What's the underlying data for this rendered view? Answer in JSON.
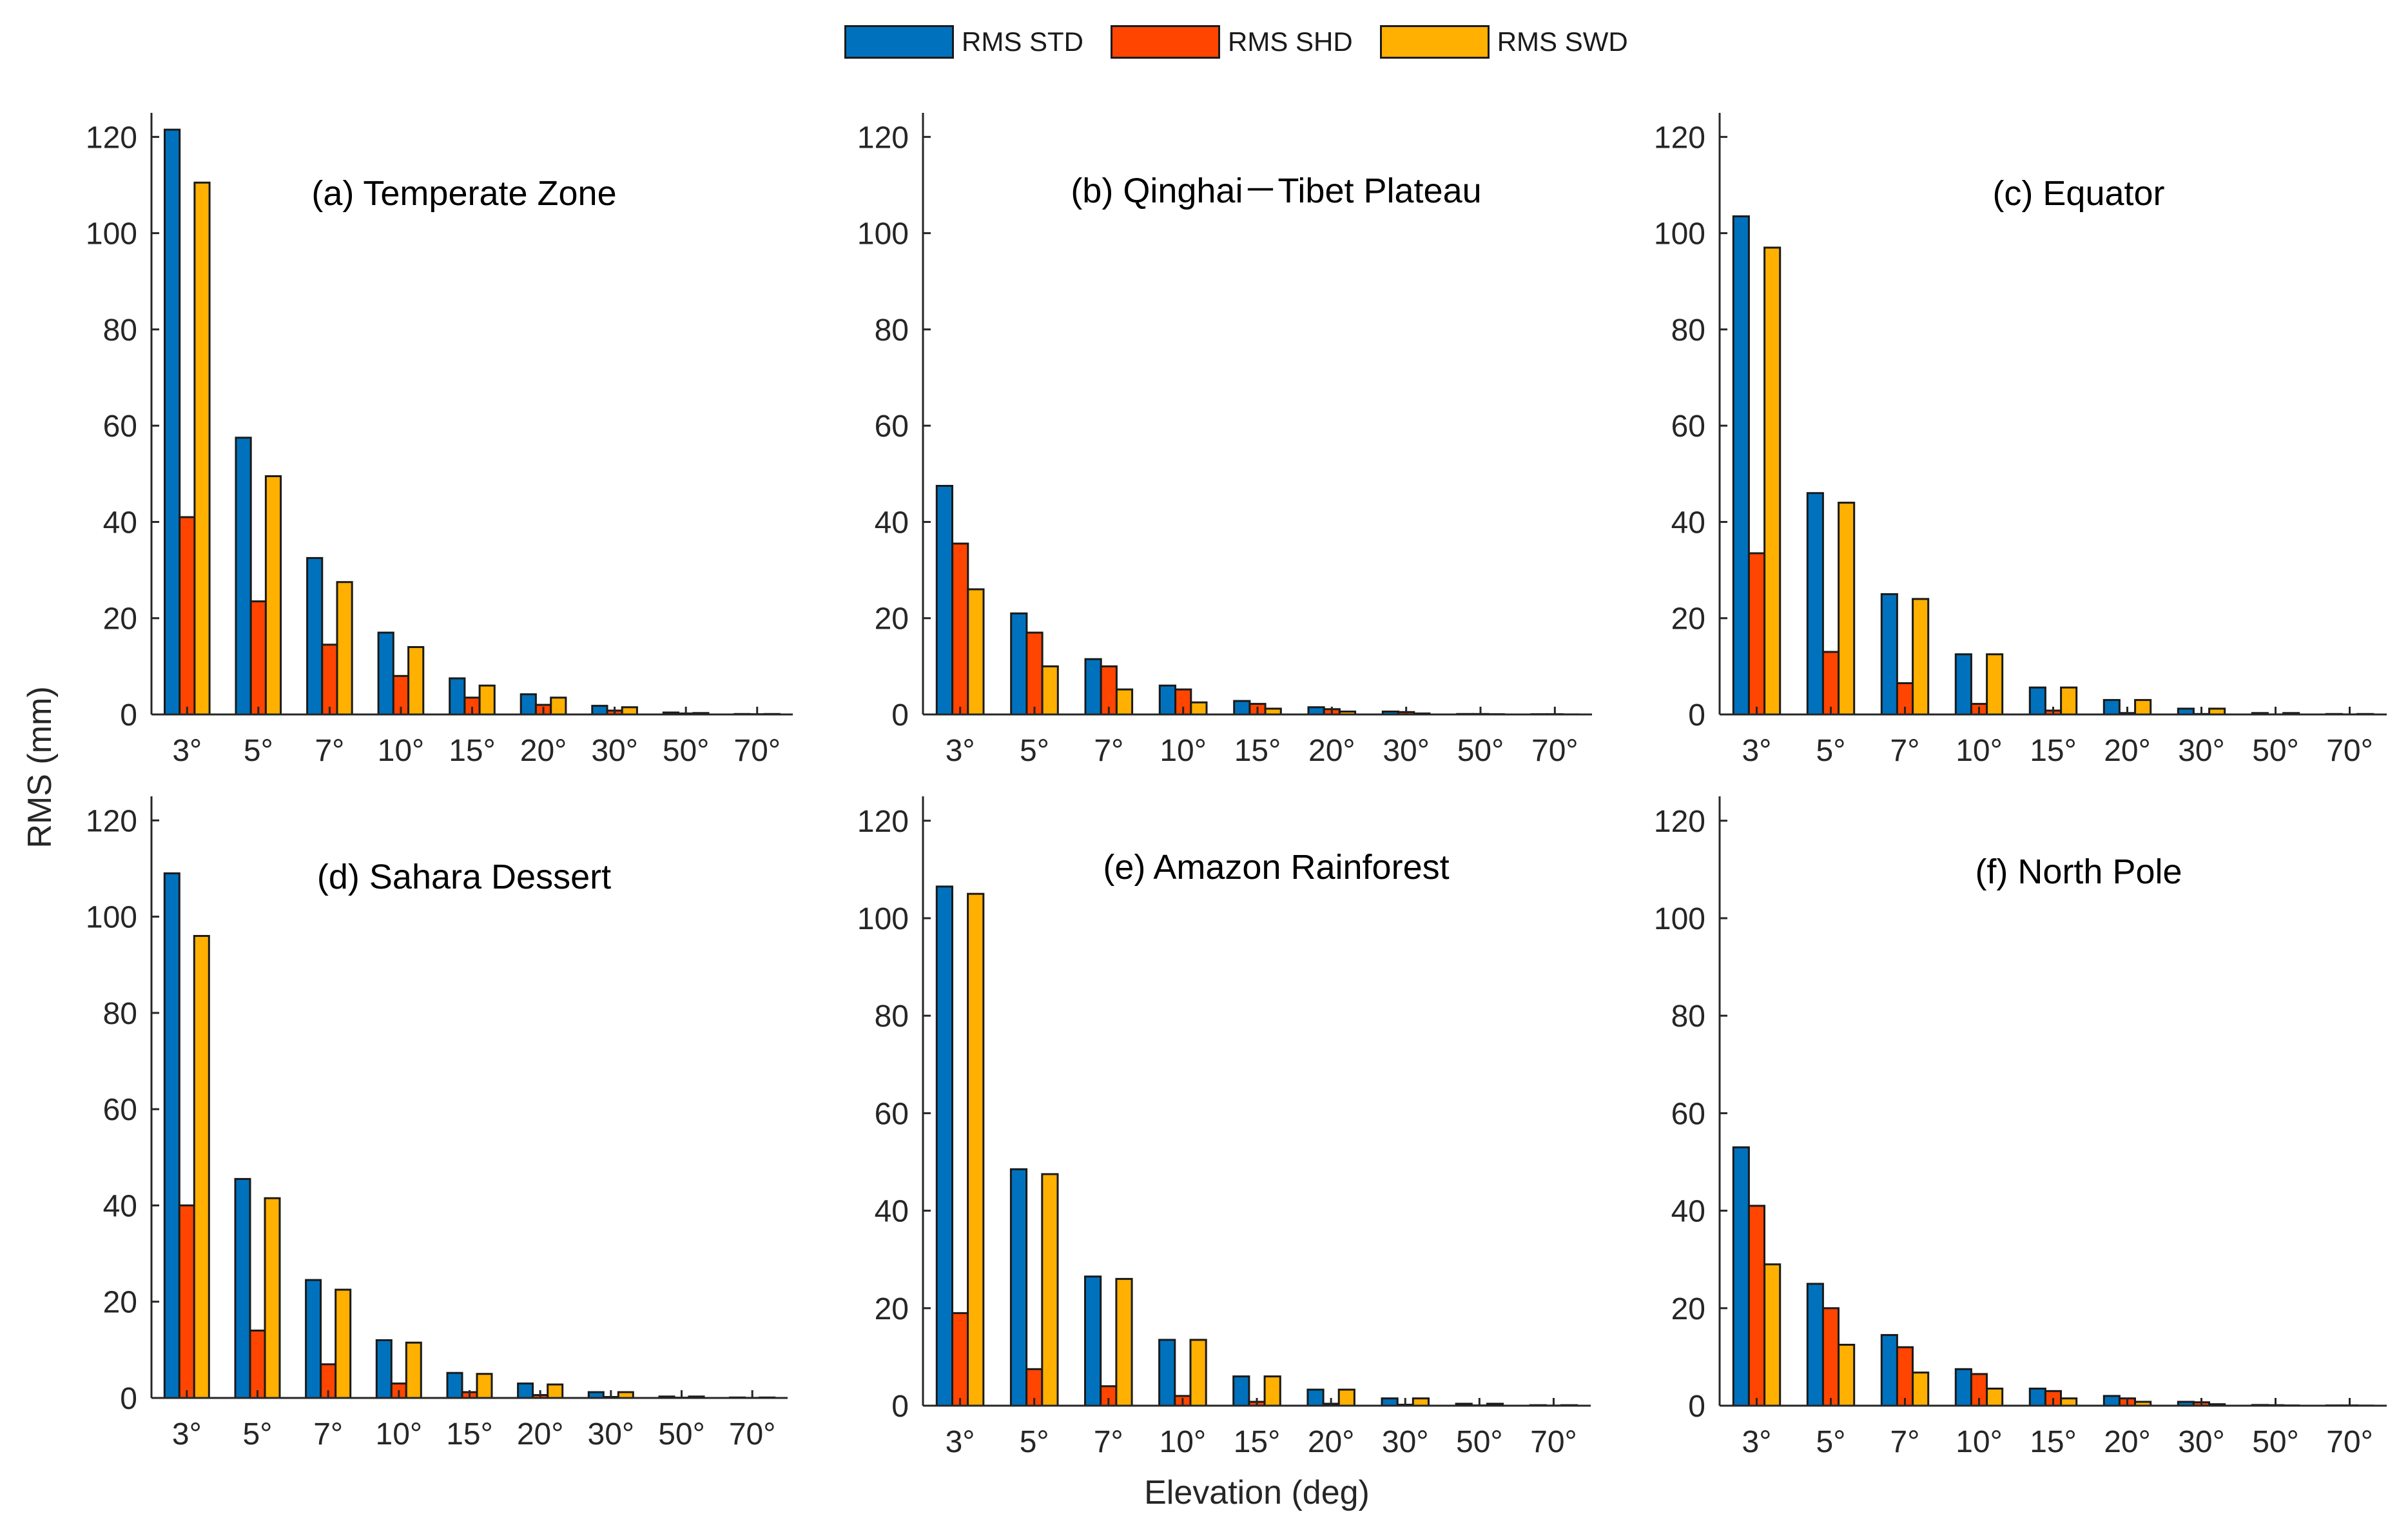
{
  "legend": [
    {
      "label": "RMS STD",
      "color": "#0072BD"
    },
    {
      "label": "RMS SHD",
      "color": "#FF4500"
    },
    {
      "label": "RMS SWD",
      "color": "#FFB000"
    }
  ],
  "ylabel": "RMS (mm)",
  "xlabel": "Elevation (deg)",
  "chart_data": [
    {
      "type": "bar",
      "title": "(a) Temperate Zone",
      "categories": [
        "3°",
        "5°",
        "7°",
        "10°",
        "15°",
        "20°",
        "30°",
        "50°",
        "70°"
      ],
      "ylim": [
        0,
        125
      ],
      "yticks": [
        0,
        20,
        40,
        60,
        80,
        100,
        120
      ],
      "series": [
        {
          "name": "RMS STD",
          "values": [
            121.5,
            57.5,
            32.5,
            17,
            7.5,
            4.2,
            1.8,
            0.4,
            0.1
          ]
        },
        {
          "name": "RMS SHD",
          "values": [
            41,
            23.5,
            14.5,
            8,
            3.5,
            2,
            0.8,
            0.2,
            0.05
          ]
        },
        {
          "name": "RMS SWD",
          "values": [
            110.5,
            49.5,
            27.5,
            14,
            6,
            3.5,
            1.5,
            0.3,
            0.1
          ]
        }
      ]
    },
    {
      "type": "bar",
      "title": "(b) Qinghai－Tibet Plateau",
      "categories": [
        "3°",
        "5°",
        "7°",
        "10°",
        "15°",
        "20°",
        "30°",
        "50°",
        "70°"
      ],
      "ylim": [
        0,
        125
      ],
      "yticks": [
        0,
        20,
        40,
        60,
        80,
        100,
        120
      ],
      "series": [
        {
          "name": "RMS STD",
          "values": [
            47.5,
            21,
            11.5,
            6,
            2.8,
            1.5,
            0.6,
            0.1,
            0.05
          ]
        },
        {
          "name": "RMS SHD",
          "values": [
            35.5,
            17,
            10,
            5.2,
            2.2,
            1.1,
            0.5,
            0.1,
            0.05
          ]
        },
        {
          "name": "RMS SWD",
          "values": [
            26,
            10,
            5.2,
            2.5,
            1.2,
            0.6,
            0.2,
            0.05,
            0.02
          ]
        }
      ]
    },
    {
      "type": "bar",
      "title": "(c) Equator",
      "categories": [
        "3°",
        "5°",
        "7°",
        "10°",
        "15°",
        "20°",
        "30°",
        "50°",
        "70°"
      ],
      "ylim": [
        0,
        125
      ],
      "yticks": [
        0,
        20,
        40,
        60,
        80,
        100,
        120
      ],
      "series": [
        {
          "name": "RMS STD",
          "values": [
            103.5,
            46,
            25,
            12.5,
            5.6,
            3,
            1.2,
            0.3,
            0.1
          ]
        },
        {
          "name": "RMS SHD",
          "values": [
            33.5,
            13,
            6.5,
            2.2,
            0.8,
            0.3,
            0.1,
            0.02,
            0.01
          ]
        },
        {
          "name": "RMS SWD",
          "values": [
            97,
            44,
            24,
            12.5,
            5.6,
            3,
            1.2,
            0.3,
            0.1
          ]
        }
      ]
    },
    {
      "type": "bar",
      "title": "(d) Sahara Dessert",
      "categories": [
        "3°",
        "5°",
        "7°",
        "10°",
        "15°",
        "20°",
        "30°",
        "50°",
        "70°"
      ],
      "ylim": [
        0,
        125
      ],
      "yticks": [
        0,
        20,
        40,
        60,
        80,
        100,
        120
      ],
      "series": [
        {
          "name": "RMS STD",
          "values": [
            109,
            45.5,
            24.5,
            12,
            5.2,
            3,
            1.2,
            0.3,
            0.1
          ]
        },
        {
          "name": "RMS SHD",
          "values": [
            40,
            14,
            7,
            3,
            1.2,
            0.6,
            0.2,
            0.05,
            0.02
          ]
        },
        {
          "name": "RMS SWD",
          "values": [
            96,
            41.5,
            22.5,
            11.5,
            5,
            2.8,
            1.2,
            0.3,
            0.1
          ]
        }
      ]
    },
    {
      "type": "bar",
      "title": "(e) Amazon Rainforest",
      "categories": [
        "3°",
        "5°",
        "7°",
        "10°",
        "15°",
        "20°",
        "30°",
        "50°",
        "70°"
      ],
      "ylim": [
        0,
        125
      ],
      "yticks": [
        0,
        20,
        40,
        60,
        80,
        100,
        120
      ],
      "series": [
        {
          "name": "RMS STD",
          "values": [
            106.5,
            48.5,
            26.5,
            13.5,
            6,
            3.3,
            1.5,
            0.4,
            0.1
          ]
        },
        {
          "name": "RMS SHD",
          "values": [
            19,
            7.5,
            4,
            2,
            0.8,
            0.4,
            0.2,
            0.05,
            0.02
          ]
        },
        {
          "name": "RMS SWD",
          "values": [
            105,
            47.5,
            26,
            13.5,
            6,
            3.3,
            1.5,
            0.4,
            0.1
          ]
        }
      ]
    },
    {
      "type": "bar",
      "title": "(f) North Pole",
      "categories": [
        "3°",
        "5°",
        "7°",
        "10°",
        "15°",
        "20°",
        "30°",
        "50°",
        "70°"
      ],
      "ylim": [
        0,
        125
      ],
      "yticks": [
        0,
        20,
        40,
        60,
        80,
        100,
        120
      ],
      "series": [
        {
          "name": "RMS STD",
          "values": [
            53,
            25,
            14.5,
            7.5,
            3.5,
            2,
            0.8,
            0.15,
            0.05
          ]
        },
        {
          "name": "RMS SHD",
          "values": [
            41,
            20,
            12,
            6.5,
            3,
            1.5,
            0.7,
            0.1,
            0.05
          ]
        },
        {
          "name": "RMS SWD",
          "values": [
            29,
            12.5,
            6.8,
            3.5,
            1.5,
            0.8,
            0.3,
            0.05,
            0.02
          ]
        }
      ]
    }
  ]
}
